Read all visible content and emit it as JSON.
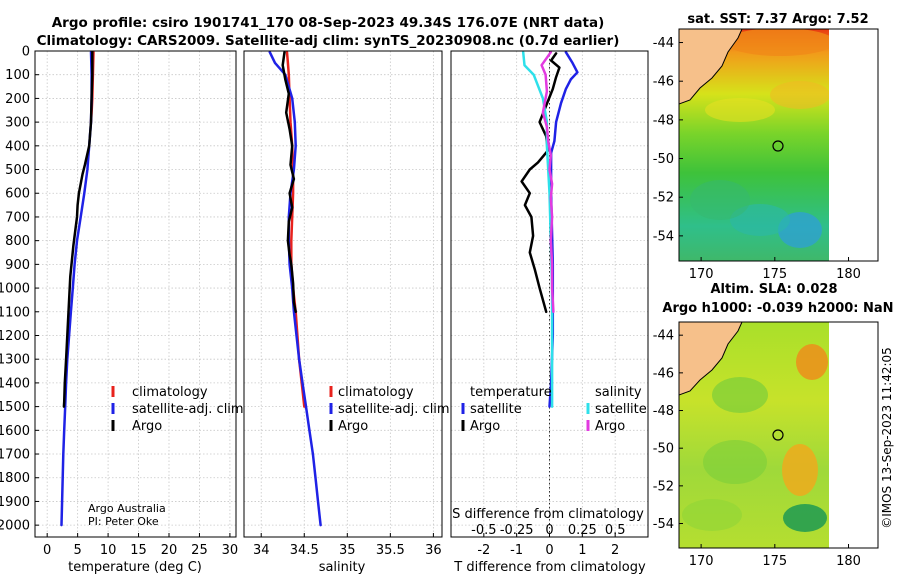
{
  "figure": {
    "title_line1": "Argo profile: csiro 1901741_170 08-Sep-2023 49.34S 176.07E (NRT data)",
    "title_line2": "Climatology: CARS2009. Satellite-adj clim: synTS_20230908.nc (0.7d earlier)",
    "credit_line1": "Argo Australia",
    "credit_line2": "PI: Peter Oke",
    "copyright": "©IMOS 13-Sep-2023 11:42:05"
  },
  "colors": {
    "climatology": "#e8221c",
    "satellite": "#1f22e6",
    "argo": "#000000",
    "sat_temp": "#2ee0ea",
    "argo_sal": "#e23ae0",
    "grid": "#c8c8c8"
  },
  "chart_data": [
    {
      "type": "line",
      "id": "temperature",
      "xlabel": "temperature (deg C)",
      "ylabel": "",
      "xlim": [
        -2,
        31
      ],
      "ylim": [
        0,
        2050
      ],
      "y_reversed": true,
      "xticks": [
        0,
        5,
        10,
        15,
        20,
        25,
        30
      ],
      "yticks": [
        0,
        100,
        200,
        300,
        400,
        500,
        600,
        700,
        800,
        900,
        1000,
        1100,
        1200,
        1300,
        1400,
        1500,
        1600,
        1700,
        1800,
        1900,
        2000
      ],
      "legend": [
        "climatology",
        "satellite-adj. clim.",
        "Argo"
      ],
      "series": [
        {
          "name": "climatology",
          "color": "#e8221c",
          "points": [
            [
              7.6,
              5
            ],
            [
              7.55,
              50
            ],
            [
              7.5,
              100
            ],
            [
              7.45,
              150
            ],
            [
              7.4,
              200
            ],
            [
              7.3,
              260
            ],
            [
              7.2,
              300
            ]
          ]
        },
        {
          "name": "satellite-adj. clim.",
          "color": "#1f22e6",
          "points": [
            [
              7.2,
              5
            ],
            [
              7.25,
              50
            ],
            [
              7.3,
              100
            ],
            [
              7.3,
              200
            ],
            [
              7.2,
              300
            ],
            [
              6.9,
              400
            ],
            [
              6.6,
              500
            ],
            [
              6.1,
              600
            ],
            [
              5.5,
              700
            ],
            [
              4.9,
              800
            ],
            [
              4.5,
              900
            ],
            [
              4.2,
              1000
            ],
            [
              3.9,
              1100
            ],
            [
              3.6,
              1200
            ],
            [
              3.3,
              1300
            ],
            [
              3.1,
              1400
            ],
            [
              2.95,
              1500
            ],
            [
              2.8,
              1600
            ],
            [
              2.65,
              1700
            ],
            [
              2.55,
              1800
            ],
            [
              2.45,
              1900
            ],
            [
              2.35,
              2000
            ]
          ]
        },
        {
          "name": "Argo",
          "color": "#000000",
          "points": [
            [
              7.4,
              5
            ],
            [
              7.4,
              100
            ],
            [
              7.3,
              200
            ],
            [
              7.2,
              300
            ],
            [
              6.9,
              400
            ],
            [
              6.2,
              480
            ],
            [
              5.8,
              520
            ],
            [
              5.5,
              560
            ],
            [
              5.2,
              600
            ],
            [
              5.0,
              650
            ],
            [
              4.9,
              700
            ],
            [
              4.6,
              760
            ],
            [
              4.3,
              820
            ],
            [
              4.0,
              900
            ],
            [
              3.8,
              950
            ],
            [
              3.6,
              1050
            ],
            [
              3.4,
              1150
            ],
            [
              3.2,
              1250
            ],
            [
              3.1,
              1300
            ],
            [
              2.9,
              1400
            ],
            [
              2.8,
              1480
            ],
            [
              2.75,
              1500
            ]
          ]
        }
      ]
    },
    {
      "type": "line",
      "id": "salinity",
      "xlabel": "salinity",
      "ylabel": "",
      "xlim": [
        33.8,
        36.1
      ],
      "ylim": [
        0,
        2050
      ],
      "y_reversed": true,
      "xticks": [
        34,
        34.5,
        35,
        35.5,
        36
      ],
      "legend": [
        "climatology",
        "satellite-adj. clim.",
        "Argo"
      ],
      "series": [
        {
          "name": "climatology",
          "color": "#e8221c",
          "points": [
            [
              34.3,
              5
            ],
            [
              34.31,
              50
            ],
            [
              34.32,
              100
            ],
            [
              34.33,
              200
            ],
            [
              34.34,
              300
            ],
            [
              34.36,
              400
            ],
            [
              34.37,
              500
            ],
            [
              34.37,
              600
            ],
            [
              34.36,
              700
            ],
            [
              34.35,
              800
            ],
            [
              34.35,
              900
            ],
            [
              34.37,
              1000
            ],
            [
              34.4,
              1100
            ],
            [
              34.42,
              1200
            ],
            [
              34.44,
              1300
            ],
            [
              34.47,
              1400
            ],
            [
              34.5,
              1500
            ]
          ]
        },
        {
          "name": "satellite-adj. clim.",
          "color": "#1f22e6",
          "points": [
            [
              34.1,
              5
            ],
            [
              34.16,
              50
            ],
            [
              34.28,
              100
            ],
            [
              34.36,
              200
            ],
            [
              34.39,
              300
            ],
            [
              34.4,
              400
            ],
            [
              34.38,
              500
            ],
            [
              34.34,
              600
            ],
            [
              34.32,
              700
            ],
            [
              34.32,
              800
            ],
            [
              34.33,
              900
            ],
            [
              34.36,
              1000
            ],
            [
              34.38,
              1100
            ],
            [
              34.41,
              1200
            ],
            [
              34.44,
              1300
            ],
            [
              34.48,
              1400
            ],
            [
              34.52,
              1500
            ],
            [
              34.56,
              1600
            ],
            [
              34.6,
              1700
            ],
            [
              34.63,
              1800
            ],
            [
              34.66,
              1900
            ],
            [
              34.69,
              2000
            ]
          ]
        },
        {
          "name": "Argo",
          "color": "#000000",
          "points": [
            [
              34.27,
              5
            ],
            [
              34.25,
              60
            ],
            [
              34.28,
              120
            ],
            [
              34.32,
              180
            ],
            [
              34.29,
              260
            ],
            [
              34.33,
              330
            ],
            [
              34.36,
              400
            ],
            [
              34.34,
              480
            ],
            [
              34.38,
              540
            ],
            [
              34.33,
              600
            ],
            [
              34.36,
              660
            ],
            [
              34.32,
              720
            ],
            [
              34.31,
              800
            ],
            [
              34.33,
              860
            ],
            [
              34.35,
              900
            ],
            [
              34.37,
              980
            ],
            [
              34.38,
              1060
            ],
            [
              34.4,
              1100
            ]
          ]
        }
      ]
    },
    {
      "type": "line",
      "id": "difference",
      "xlabel": "T difference from climatology",
      "x2label": "S difference from climatology",
      "ylabel": "",
      "xlim": [
        -3,
        3
      ],
      "ylim": [
        0,
        2050
      ],
      "y_reversed": true,
      "xticks": [
        -2,
        -1,
        0,
        1,
        2
      ],
      "x2lim": [
        -0.75,
        0.75
      ],
      "x2ticks": [
        -0.5,
        -0.25,
        0,
        0.25,
        0.5
      ],
      "legend_temperature_title": "temperature",
      "legend_salinity_title": "salinity",
      "legend_temperature": [
        "satellite",
        "Argo"
      ],
      "legend_salinity": [
        "satellite",
        "Argo"
      ],
      "series": [
        {
          "name": "temperature satellite",
          "color": "#1f22e6",
          "axis": "T",
          "points": [
            [
              0.5,
              5
            ],
            [
              0.7,
              50
            ],
            [
              0.85,
              90
            ],
            [
              0.65,
              120
            ],
            [
              0.5,
              160
            ],
            [
              0.35,
              220
            ],
            [
              0.2,
              300
            ],
            [
              0.15,
              380
            ],
            [
              0.05,
              430
            ],
            [
              0.05,
              600
            ],
            [
              0.1,
              900
            ],
            [
              0.1,
              1200
            ],
            [
              0.05,
              1400
            ],
            [
              0.0,
              1500
            ]
          ]
        },
        {
          "name": "temperature Argo",
          "color": "#000000",
          "axis": "T",
          "points": [
            [
              0.2,
              10
            ],
            [
              0.05,
              40
            ],
            [
              0.3,
              70
            ],
            [
              0.2,
              110
            ],
            [
              0.1,
              160
            ],
            [
              -0.1,
              230
            ],
            [
              -0.3,
              300
            ],
            [
              -0.1,
              360
            ],
            [
              -0.05,
              420
            ],
            [
              -0.35,
              470
            ],
            [
              -0.6,
              500
            ],
            [
              -0.85,
              550
            ],
            [
              -0.6,
              600
            ],
            [
              -0.75,
              650
            ],
            [
              -0.55,
              700
            ],
            [
              -0.5,
              780
            ],
            [
              -0.6,
              850
            ],
            [
              -0.45,
              920
            ],
            [
              -0.3,
              1000
            ],
            [
              -0.1,
              1100
            ]
          ]
        },
        {
          "name": "salinity satellite",
          "color": "#2ee0ea",
          "axis": "S",
          "points": [
            [
              -0.2,
              5
            ],
            [
              -0.19,
              60
            ],
            [
              -0.12,
              100
            ],
            [
              -0.05,
              200
            ],
            [
              -0.02,
              300
            ],
            [
              -0.02,
              400
            ],
            [
              0.0,
              600
            ],
            [
              0.01,
              800
            ],
            [
              0.02,
              1000
            ],
            [
              0.02,
              1200
            ],
            [
              0.02,
              1400
            ],
            [
              0.02,
              1500
            ]
          ]
        },
        {
          "name": "salinity Argo",
          "color": "#e23ae0",
          "axis": "S",
          "points": [
            [
              0.01,
              5
            ],
            [
              -0.06,
              60
            ],
            [
              -0.03,
              100
            ],
            [
              -0.02,
              170
            ],
            [
              -0.05,
              260
            ],
            [
              -0.02,
              320
            ],
            [
              -0.01,
              380
            ],
            [
              0.01,
              440
            ],
            [
              0.0,
              500
            ],
            [
              0.02,
              560
            ],
            [
              0.01,
              620
            ],
            [
              0.02,
              700
            ],
            [
              0.01,
              800
            ],
            [
              0.02,
              900
            ],
            [
              0.02,
              1000
            ],
            [
              0.03,
              1100
            ]
          ]
        }
      ]
    },
    {
      "type": "heatmap",
      "id": "sst_map",
      "title": "sat. SST: 7.37 Argo: 7.52",
      "xlim": [
        168.5,
        182
      ],
      "ylim": [
        -55.3,
        -43.3
      ],
      "xticks": [
        170,
        175,
        180
      ],
      "yticks": [
        -44,
        -46,
        -48,
        -50,
        -52,
        -54
      ],
      "marker": [
        176.07,
        -49.34
      ]
    },
    {
      "type": "heatmap",
      "id": "sla_map",
      "title_line1": "Altim. SLA: 0.028",
      "title_line2": "Argo h1000: -0.039 h2000: NaN",
      "xlim": [
        168.5,
        182
      ],
      "ylim": [
        -55.3,
        -43.3
      ],
      "xticks": [
        170,
        175,
        180
      ],
      "yticks": [
        -44,
        -46,
        -48,
        -50,
        -52,
        -54
      ],
      "marker": [
        176.07,
        -49.34
      ]
    }
  ]
}
